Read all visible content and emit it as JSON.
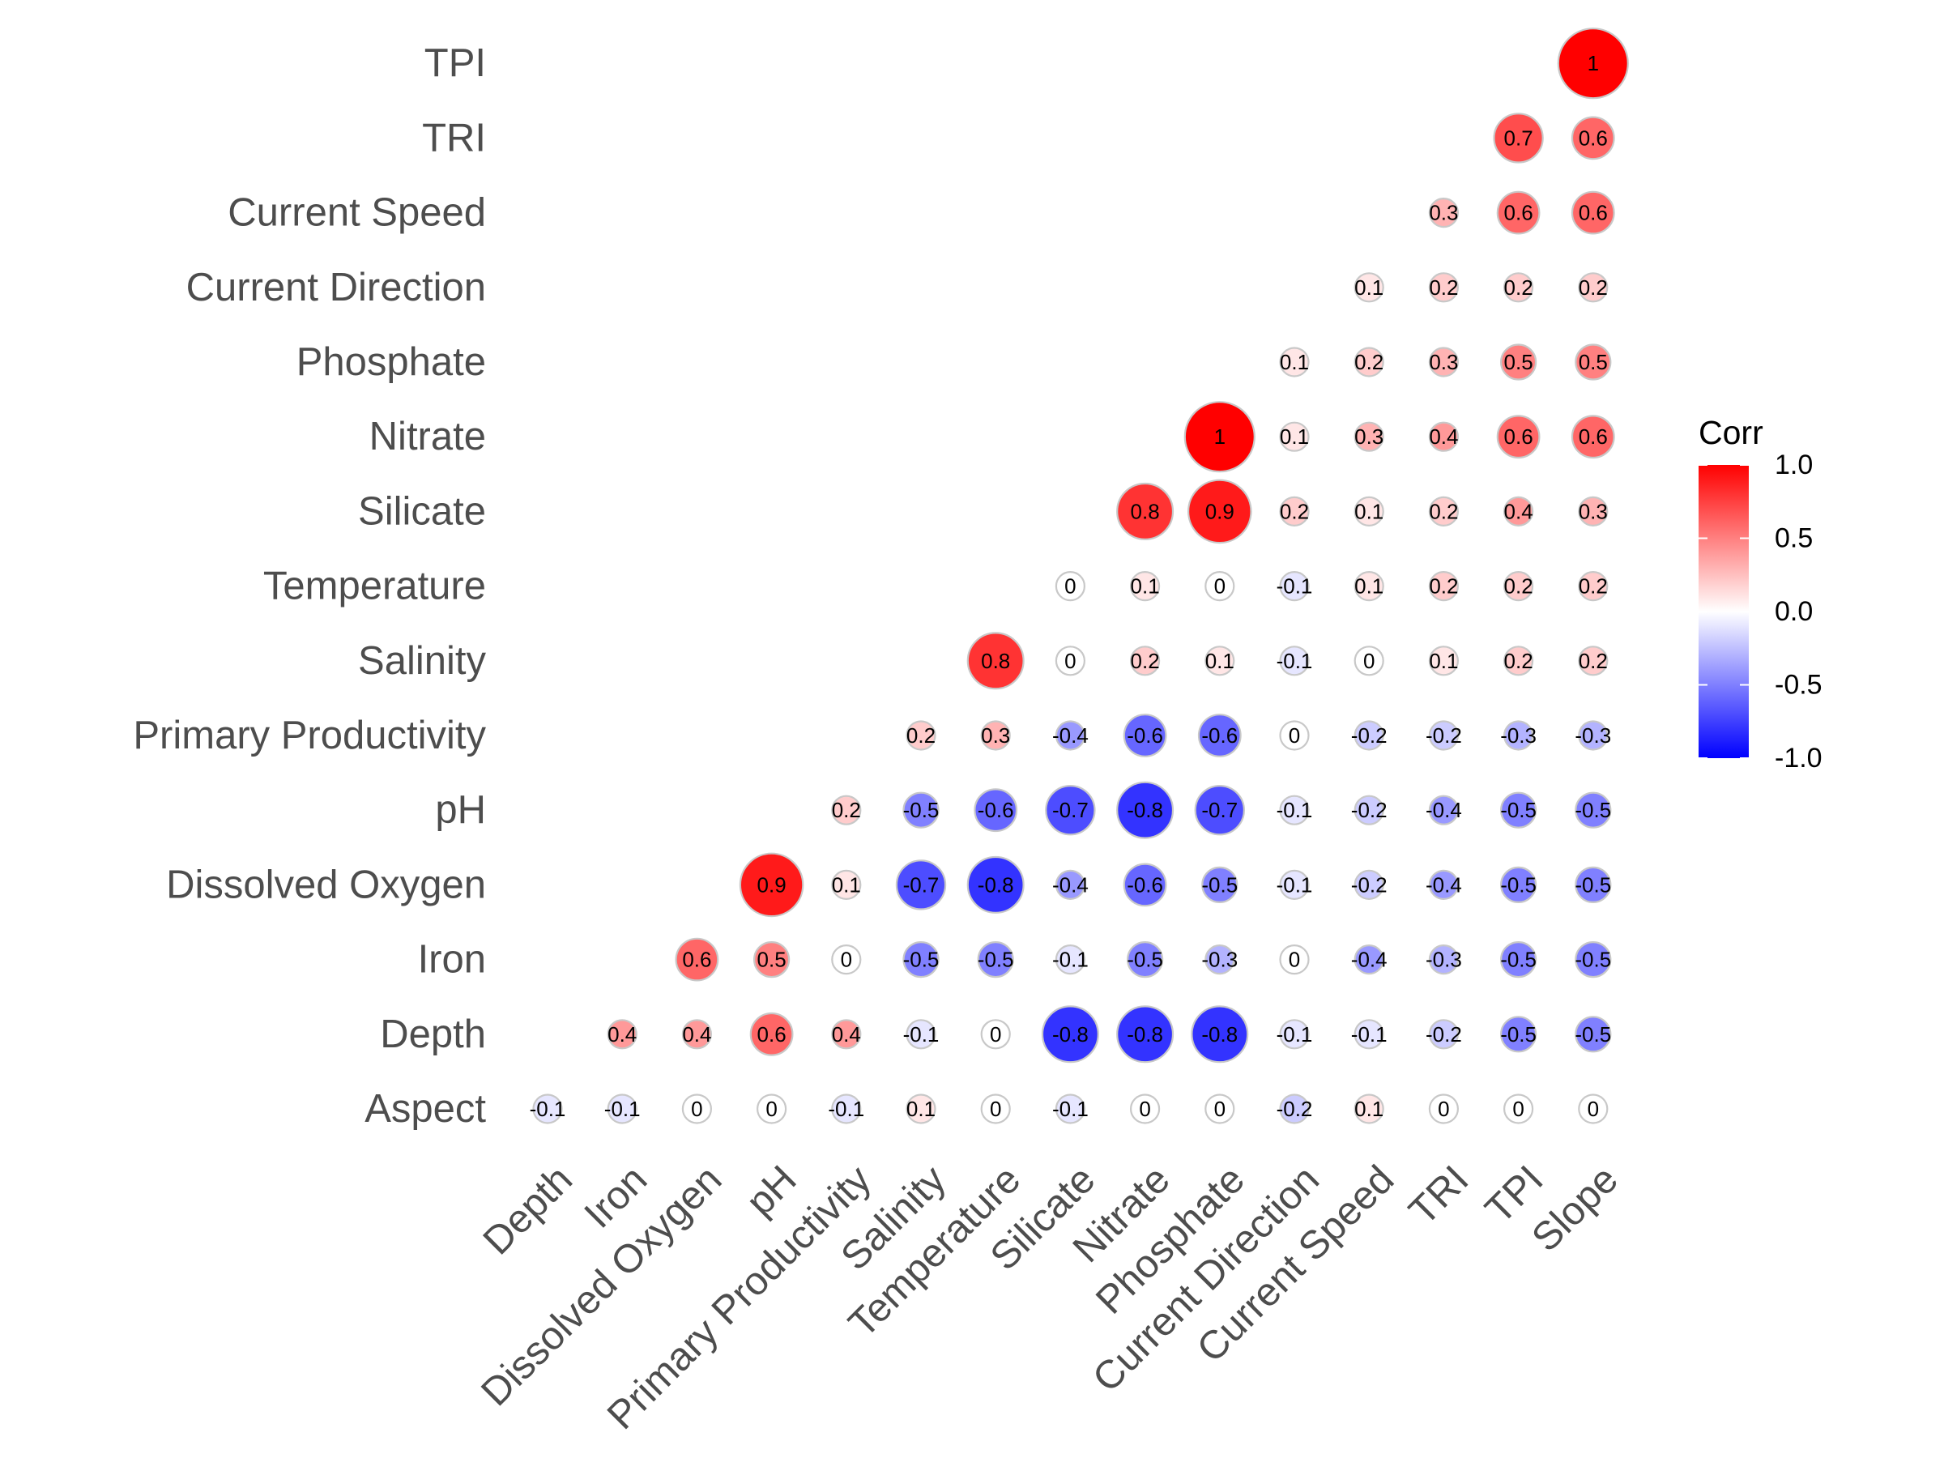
{
  "chart_data": {
    "type": "heatmap",
    "style": "circle",
    "variant": "lower-triangle correlation matrix",
    "x_labels": [
      "Depth",
      "Iron",
      "Dissolved Oxygen",
      "pH",
      "Primary Productivity",
      "Salinity",
      "Temperature",
      "Silicate",
      "Nitrate",
      "Phosphate",
      "Current Direction",
      "Current Speed",
      "TRI",
      "TPI",
      "Slope"
    ],
    "y_labels": [
      "Aspect",
      "Depth",
      "Iron",
      "Dissolved Oxygen",
      "pH",
      "Primary Productivity",
      "Salinity",
      "Temperature",
      "Silicate",
      "Nitrate",
      "Phosphate",
      "Current Direction",
      "Current Speed",
      "TRI",
      "TPI"
    ],
    "values": [
      [
        -0.1,
        -0.1,
        0,
        0,
        -0.1,
        0.1,
        0,
        -0.1,
        0,
        0,
        -0.2,
        0.1,
        0,
        0,
        0
      ],
      [
        0.4,
        0.4,
        0.6,
        0.4,
        -0.1,
        0,
        -0.8,
        -0.8,
        -0.8,
        -0.1,
        -0.1,
        -0.2,
        -0.5,
        -0.5
      ],
      [
        0.6,
        0.5,
        0,
        -0.5,
        -0.5,
        -0.1,
        -0.5,
        -0.3,
        0,
        -0.4,
        -0.3,
        -0.5,
        -0.5
      ],
      [
        0.9,
        0.1,
        -0.7,
        -0.8,
        -0.4,
        -0.6,
        -0.5,
        -0.1,
        -0.2,
        -0.4,
        -0.5,
        -0.5
      ],
      [
        0.2,
        -0.5,
        -0.6,
        -0.7,
        -0.8,
        -0.7,
        -0.1,
        -0.2,
        -0.4,
        -0.5,
        -0.5
      ],
      [
        0.2,
        0.3,
        -0.4,
        -0.6,
        -0.6,
        0,
        -0.2,
        -0.2,
        -0.3,
        -0.3
      ],
      [
        0.8,
        0,
        0.2,
        0.1,
        -0.1,
        0,
        0.1,
        0.2,
        0.2
      ],
      [
        0,
        0.1,
        0,
        -0.1,
        0.1,
        0.2,
        0.2,
        0.2
      ],
      [
        0.8,
        0.9,
        0.2,
        0.1,
        0.2,
        0.4,
        0.3
      ],
      [
        1,
        0.1,
        0.3,
        0.4,
        0.6,
        0.6
      ],
      [
        0.1,
        0.2,
        0.3,
        0.5,
        0.5
      ],
      [
        0.1,
        0.2,
        0.2,
        0.2
      ],
      [
        0.3,
        0.6,
        0.6
      ],
      [
        0.7,
        0.6
      ],
      [
        1
      ]
    ],
    "legend": {
      "title": "Corr",
      "ticks": [
        "1.0",
        "0.5",
        "0.0",
        "-0.5",
        "-1.0"
      ],
      "tick_values": [
        1.0,
        0.5,
        0.0,
        -0.5,
        -1.0
      ],
      "range": [
        -1,
        1
      ],
      "placement": "right"
    },
    "colors": {
      "high": "#ff0000",
      "mid": "#ffffff",
      "low": "#0000ff",
      "outline": "#c8c8c8",
      "text": "#000000",
      "axis_text": "#4d4d4d"
    },
    "grid": false
  }
}
